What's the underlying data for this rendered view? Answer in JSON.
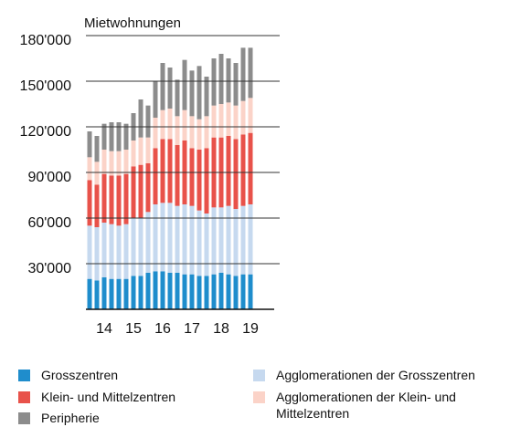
{
  "chart_data": {
    "type": "stacked-bar",
    "title": "Mietwohnungen",
    "categories": [
      null,
      null,
      "14",
      null,
      null,
      null,
      "15",
      null,
      null,
      null,
      "16",
      null,
      null,
      null,
      "17",
      null,
      null,
      null,
      "18",
      null,
      null,
      null,
      "19"
    ],
    "series": [
      {
        "name": "Grosszentren",
        "color": "#1f8dcc",
        "values": [
          20,
          19,
          21,
          20,
          20,
          20,
          22,
          22,
          24,
          25,
          25,
          24,
          24,
          23,
          23,
          22,
          22,
          23,
          24,
          23,
          22,
          23,
          23
        ]
      },
      {
        "name": "Agglomerationen der Grosszentren",
        "color": "#c6d9ef",
        "values": [
          35,
          35,
          36,
          36,
          35,
          36,
          38,
          38,
          40,
          44,
          45,
          46,
          44,
          46,
          45,
          43,
          41,
          44,
          43,
          45,
          44,
          45,
          46
        ]
      },
      {
        "name": "Klein- und Mittelzentren",
        "color": "#e8524a",
        "values": [
          30,
          28,
          32,
          32,
          33,
          33,
          34,
          35,
          32,
          37,
          42,
          42,
          40,
          42,
          38,
          40,
          43,
          46,
          46,
          46,
          46,
          47,
          47
        ]
      },
      {
        "name": "Agglomerationen der Klein- und Mittelzentren",
        "color": "#fbd3c8",
        "values": [
          15,
          15,
          16,
          16,
          16,
          16,
          17,
          18,
          17,
          20,
          19,
          20,
          19,
          20,
          21,
          20,
          21,
          21,
          22,
          22,
          22,
          22,
          23
        ]
      },
      {
        "name": "Peripherie",
        "color": "#8c8c8c",
        "values": [
          17,
          17,
          17,
          19,
          19,
          17,
          18,
          25,
          21,
          24,
          31,
          27,
          24,
          33,
          30,
          35,
          26,
          31,
          33,
          29,
          28,
          35,
          33
        ]
      }
    ],
    "ylim": [
      0,
      180000
    ],
    "yticks": [
      {
        "value": 30000,
        "label": "30'000"
      },
      {
        "value": 60000,
        "label": "60'000"
      },
      {
        "value": 90000,
        "label": "90'000"
      },
      {
        "value": 120000,
        "label": "120'000"
      },
      {
        "value": 150000,
        "label": "150'000"
      },
      {
        "value": 180000,
        "label": "180'000"
      }
    ],
    "value_scale": 1000,
    "grid": true
  }
}
